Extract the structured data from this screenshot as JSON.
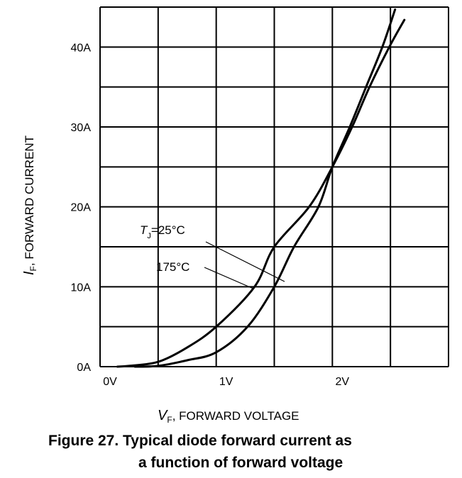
{
  "chart_data": {
    "type": "line",
    "title": "",
    "xlabel": {
      "symbol": "V",
      "subscript": "F",
      "text": ", FORWARD VOLTAGE"
    },
    "ylabel": {
      "symbol": "I",
      "subscript": "F",
      "text": ", FORWARD CURRENT"
    },
    "xlim": [
      0,
      3
    ],
    "ylim": [
      0,
      45
    ],
    "x_ticks": [
      0,
      1,
      2
    ],
    "x_tick_labels": [
      "0V",
      "1V",
      "2V"
    ],
    "y_ticks": [
      0,
      10,
      20,
      30,
      40
    ],
    "y_tick_labels": [
      "0A",
      "10A",
      "20A",
      "30A",
      "40A"
    ],
    "x_grid_step": 0.5,
    "y_grid_step": 5,
    "grid": true,
    "line_color": "#000000",
    "series": [
      {
        "name": "TJ=25°C",
        "x": [
          0.3,
          0.5,
          0.75,
          1.0,
          1.27,
          1.5,
          1.67,
          1.88,
          2.0,
          2.15,
          2.29,
          2.43,
          2.54
        ],
        "y": [
          0,
          0.1,
          0.8,
          1.8,
          5,
          10,
          15,
          20,
          25,
          30,
          35,
          40,
          44.7
        ]
      },
      {
        "name": "175°C",
        "x": [
          0.15,
          0.25,
          0.5,
          0.75,
          1.0,
          1.33,
          1.5,
          1.8,
          2.0,
          2.17,
          2.32,
          2.49,
          2.62
        ],
        "y": [
          0,
          0.1,
          0.6,
          2.4,
          5,
          10,
          15,
          20,
          25,
          30,
          35,
          40,
          43.4
        ]
      }
    ],
    "annotations": [
      {
        "symbol": "T",
        "subscript": "J",
        "text": "=25°C",
        "series": "TJ=25°C"
      },
      {
        "text": "175°C",
        "series": "175°C"
      }
    ]
  },
  "caption": {
    "line1": "Figure 27. Typical diode forward current as",
    "line2": "a function of forward voltage"
  }
}
